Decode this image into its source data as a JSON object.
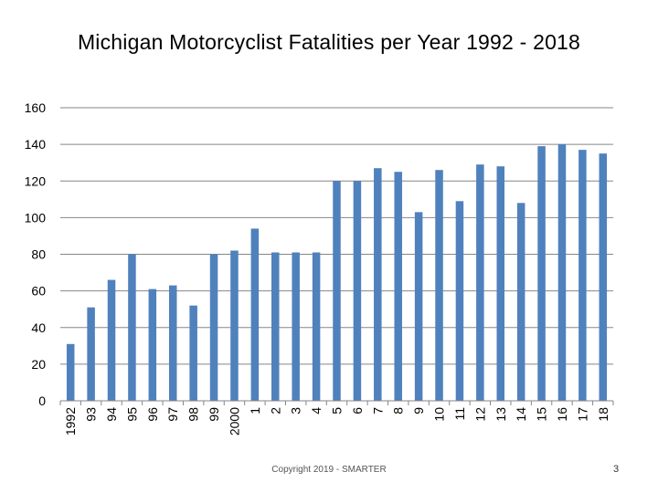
{
  "slide": {
    "title": "Michigan Motorcyclist Fatalities per Year 1992 - 2018",
    "footer": "Copyright 2019 - SMARTER",
    "page_number": "3"
  },
  "colors": {
    "bar": "#4f81bd",
    "grid": "#868686",
    "axis": "#868686"
  },
  "chart_data": {
    "type": "bar",
    "title": "Michigan Motorcyclist Fatalities per Year 1992 - 2018",
    "xlabel": "",
    "ylabel": "",
    "ylim": [
      0,
      160
    ],
    "yticks": [
      0,
      20,
      40,
      60,
      80,
      100,
      120,
      140,
      160
    ],
    "grid": true,
    "legend": "none",
    "categories": [
      "1992",
      "93",
      "94",
      "95",
      "96",
      "97",
      "98",
      "99",
      "2000",
      "1",
      "2",
      "3",
      "4",
      "5",
      "6",
      "7",
      "8",
      "9",
      "10",
      "11",
      "12",
      "13",
      "14",
      "15",
      "16",
      "17",
      "18"
    ],
    "values": [
      31,
      51,
      66,
      80,
      61,
      63,
      52,
      80,
      82,
      94,
      81,
      81,
      81,
      120,
      120,
      127,
      125,
      103,
      126,
      109,
      129,
      128,
      108,
      139,
      140,
      137,
      135
    ]
  }
}
